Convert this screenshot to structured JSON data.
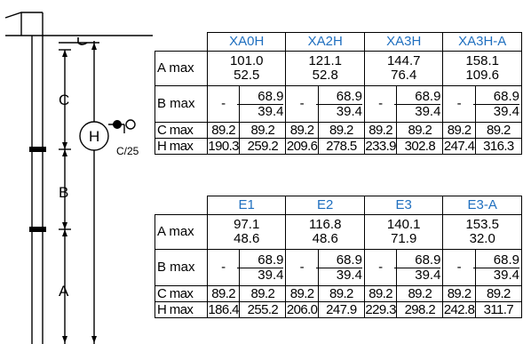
{
  "diagram": {
    "dimension_labels": {
      "c": "C",
      "b": "B",
      "a": "A"
    },
    "lamp_symbol": "H",
    "lamp_note": "C/25"
  },
  "tables": [
    {
      "columns": [
        "XA0H",
        "XA2H",
        "XA3H",
        "XA3H-A"
      ],
      "rows": {
        "a_label": "A max",
        "a": [
          [
            "101.0",
            "52.5"
          ],
          [
            "121.1",
            "52.8"
          ],
          [
            "144.7",
            "76.4"
          ],
          [
            "158.1",
            "109.6"
          ]
        ],
        "b_label": "B max",
        "b": [
          [
            "-",
            "68.9 39.4"
          ],
          [
            "-",
            "68.9 39.4"
          ],
          [
            "-",
            "68.9 39.4"
          ],
          [
            "-",
            "68.9 39.4"
          ]
        ],
        "b_top": "68.9",
        "b_bottom": "39.4",
        "c_label": "C max",
        "c": [
          "89.2",
          "89.2",
          "89.2",
          "89.2",
          "89.2",
          "89.2",
          "89.2",
          "89.2"
        ],
        "h_label": "H max",
        "h": [
          "190.3",
          "259.2",
          "209.6",
          "278.5",
          "233.9",
          "302.8",
          "247.4",
          "316.3"
        ]
      }
    },
    {
      "columns": [
        "E1",
        "E2",
        "E3",
        "E3-A"
      ],
      "rows": {
        "a_label": "A max",
        "a": [
          [
            "97.1",
            "48.6"
          ],
          [
            "116.8",
            "48.6"
          ],
          [
            "140.1",
            "71.9"
          ],
          [
            "153.5",
            "32.0"
          ]
        ],
        "b_label": "B max",
        "b": [
          [
            "-",
            "68.9 39.4"
          ],
          [
            "-",
            "68.9 39.4"
          ],
          [
            "-",
            "68.9 39.4"
          ],
          [
            "-",
            "68.9 39.4"
          ]
        ],
        "b_top": "68.9",
        "b_bottom": "39.4",
        "c_label": "C max",
        "c": [
          "89.2",
          "89.2",
          "89.2",
          "89.2",
          "89.2",
          "89.2",
          "89.2",
          "89.2"
        ],
        "h_label": "H max",
        "h": [
          "186.4",
          "255.2",
          "206.0",
          "247.9",
          "229.3",
          "298.2",
          "242.8",
          "311.7"
        ]
      }
    }
  ]
}
